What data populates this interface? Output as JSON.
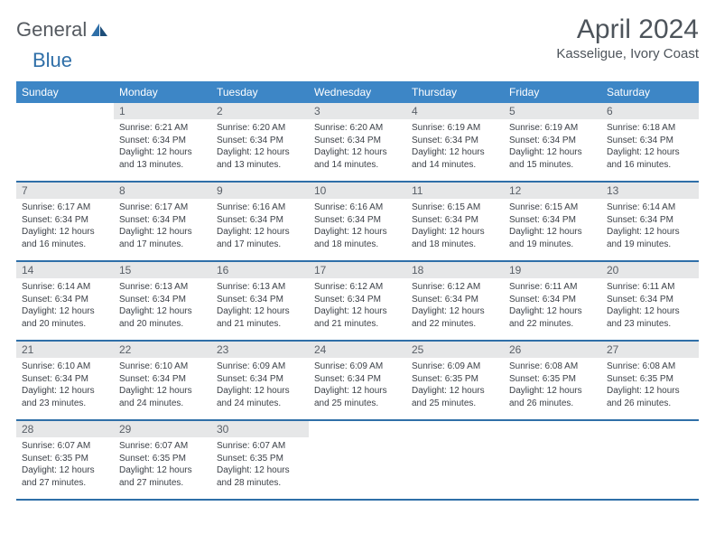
{
  "brand": {
    "word1": "General",
    "word2": "Blue"
  },
  "title": "April 2024",
  "location": "Kasseligue, Ivory Coast",
  "colors": {
    "header_bg": "#3d86c6",
    "border": "#2f6fa8",
    "daynum_bg": "#e6e7e8",
    "text": "#3c4148"
  },
  "weekdays": [
    "Sunday",
    "Monday",
    "Tuesday",
    "Wednesday",
    "Thursday",
    "Friday",
    "Saturday"
  ],
  "weeks": [
    [
      null,
      {
        "n": "1",
        "sr": "Sunrise: 6:21 AM",
        "ss": "Sunset: 6:34 PM",
        "dl": "Daylight: 12 hours and 13 minutes."
      },
      {
        "n": "2",
        "sr": "Sunrise: 6:20 AM",
        "ss": "Sunset: 6:34 PM",
        "dl": "Daylight: 12 hours and 13 minutes."
      },
      {
        "n": "3",
        "sr": "Sunrise: 6:20 AM",
        "ss": "Sunset: 6:34 PM",
        "dl": "Daylight: 12 hours and 14 minutes."
      },
      {
        "n": "4",
        "sr": "Sunrise: 6:19 AM",
        "ss": "Sunset: 6:34 PM",
        "dl": "Daylight: 12 hours and 14 minutes."
      },
      {
        "n": "5",
        "sr": "Sunrise: 6:19 AM",
        "ss": "Sunset: 6:34 PM",
        "dl": "Daylight: 12 hours and 15 minutes."
      },
      {
        "n": "6",
        "sr": "Sunrise: 6:18 AM",
        "ss": "Sunset: 6:34 PM",
        "dl": "Daylight: 12 hours and 16 minutes."
      }
    ],
    [
      {
        "n": "7",
        "sr": "Sunrise: 6:17 AM",
        "ss": "Sunset: 6:34 PM",
        "dl": "Daylight: 12 hours and 16 minutes."
      },
      {
        "n": "8",
        "sr": "Sunrise: 6:17 AM",
        "ss": "Sunset: 6:34 PM",
        "dl": "Daylight: 12 hours and 17 minutes."
      },
      {
        "n": "9",
        "sr": "Sunrise: 6:16 AM",
        "ss": "Sunset: 6:34 PM",
        "dl": "Daylight: 12 hours and 17 minutes."
      },
      {
        "n": "10",
        "sr": "Sunrise: 6:16 AM",
        "ss": "Sunset: 6:34 PM",
        "dl": "Daylight: 12 hours and 18 minutes."
      },
      {
        "n": "11",
        "sr": "Sunrise: 6:15 AM",
        "ss": "Sunset: 6:34 PM",
        "dl": "Daylight: 12 hours and 18 minutes."
      },
      {
        "n": "12",
        "sr": "Sunrise: 6:15 AM",
        "ss": "Sunset: 6:34 PM",
        "dl": "Daylight: 12 hours and 19 minutes."
      },
      {
        "n": "13",
        "sr": "Sunrise: 6:14 AM",
        "ss": "Sunset: 6:34 PM",
        "dl": "Daylight: 12 hours and 19 minutes."
      }
    ],
    [
      {
        "n": "14",
        "sr": "Sunrise: 6:14 AM",
        "ss": "Sunset: 6:34 PM",
        "dl": "Daylight: 12 hours and 20 minutes."
      },
      {
        "n": "15",
        "sr": "Sunrise: 6:13 AM",
        "ss": "Sunset: 6:34 PM",
        "dl": "Daylight: 12 hours and 20 minutes."
      },
      {
        "n": "16",
        "sr": "Sunrise: 6:13 AM",
        "ss": "Sunset: 6:34 PM",
        "dl": "Daylight: 12 hours and 21 minutes."
      },
      {
        "n": "17",
        "sr": "Sunrise: 6:12 AM",
        "ss": "Sunset: 6:34 PM",
        "dl": "Daylight: 12 hours and 21 minutes."
      },
      {
        "n": "18",
        "sr": "Sunrise: 6:12 AM",
        "ss": "Sunset: 6:34 PM",
        "dl": "Daylight: 12 hours and 22 minutes."
      },
      {
        "n": "19",
        "sr": "Sunrise: 6:11 AM",
        "ss": "Sunset: 6:34 PM",
        "dl": "Daylight: 12 hours and 22 minutes."
      },
      {
        "n": "20",
        "sr": "Sunrise: 6:11 AM",
        "ss": "Sunset: 6:34 PM",
        "dl": "Daylight: 12 hours and 23 minutes."
      }
    ],
    [
      {
        "n": "21",
        "sr": "Sunrise: 6:10 AM",
        "ss": "Sunset: 6:34 PM",
        "dl": "Daylight: 12 hours and 23 minutes."
      },
      {
        "n": "22",
        "sr": "Sunrise: 6:10 AM",
        "ss": "Sunset: 6:34 PM",
        "dl": "Daylight: 12 hours and 24 minutes."
      },
      {
        "n": "23",
        "sr": "Sunrise: 6:09 AM",
        "ss": "Sunset: 6:34 PM",
        "dl": "Daylight: 12 hours and 24 minutes."
      },
      {
        "n": "24",
        "sr": "Sunrise: 6:09 AM",
        "ss": "Sunset: 6:34 PM",
        "dl": "Daylight: 12 hours and 25 minutes."
      },
      {
        "n": "25",
        "sr": "Sunrise: 6:09 AM",
        "ss": "Sunset: 6:35 PM",
        "dl": "Daylight: 12 hours and 25 minutes."
      },
      {
        "n": "26",
        "sr": "Sunrise: 6:08 AM",
        "ss": "Sunset: 6:35 PM",
        "dl": "Daylight: 12 hours and 26 minutes."
      },
      {
        "n": "27",
        "sr": "Sunrise: 6:08 AM",
        "ss": "Sunset: 6:35 PM",
        "dl": "Daylight: 12 hours and 26 minutes."
      }
    ],
    [
      {
        "n": "28",
        "sr": "Sunrise: 6:07 AM",
        "ss": "Sunset: 6:35 PM",
        "dl": "Daylight: 12 hours and 27 minutes."
      },
      {
        "n": "29",
        "sr": "Sunrise: 6:07 AM",
        "ss": "Sunset: 6:35 PM",
        "dl": "Daylight: 12 hours and 27 minutes."
      },
      {
        "n": "30",
        "sr": "Sunrise: 6:07 AM",
        "ss": "Sunset: 6:35 PM",
        "dl": "Daylight: 12 hours and 28 minutes."
      },
      null,
      null,
      null,
      null
    ]
  ]
}
